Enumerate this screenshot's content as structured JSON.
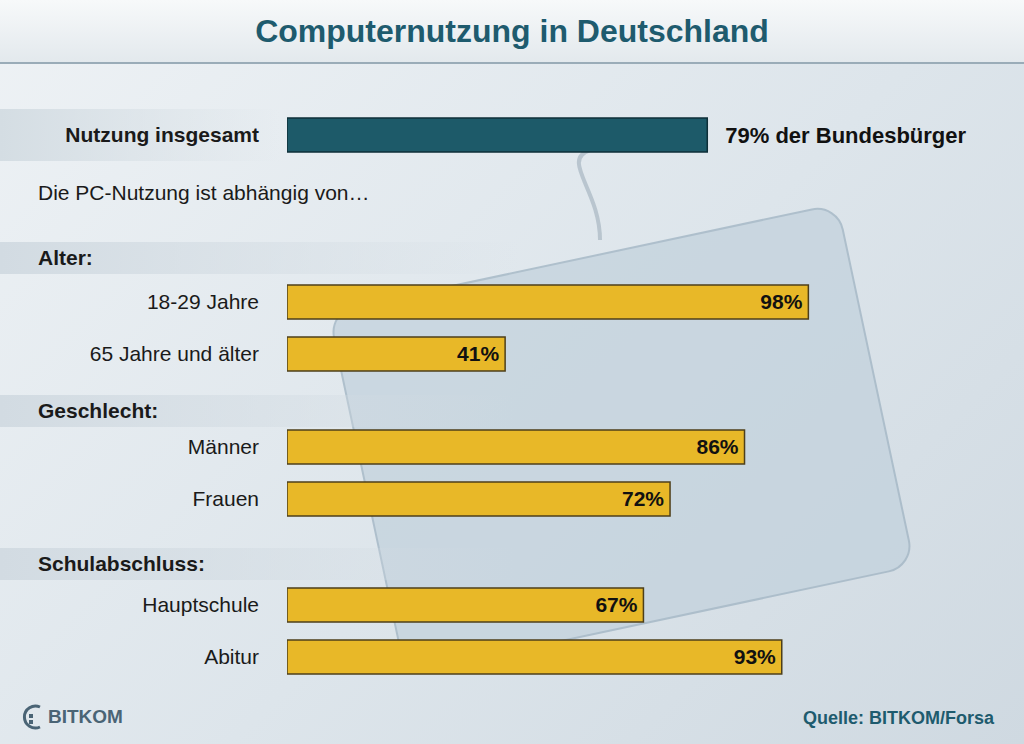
{
  "chart_data": [
    {
      "type": "bar",
      "orientation": "horizontal",
      "title": "Computernutzung in Deutschland",
      "categories": [
        "Nutzung insgesamt"
      ],
      "values": [
        79
      ],
      "value_labels": [
        "79% der Bundesbürger"
      ],
      "color": "#1d5a69",
      "xlim": [
        0,
        100
      ],
      "tick_labels": "y",
      "data_labels": true
    },
    {
      "type": "bar",
      "orientation": "horizontal",
      "subtitle": "Die PC-Nutzung ist abhängig von…",
      "title": "Alter:",
      "categories": [
        "18-29 Jahre",
        "65 Jahre und älter"
      ],
      "values": [
        98,
        41
      ],
      "value_labels": [
        "98%",
        "41%"
      ],
      "color": "#e8b828",
      "xlim": [
        0,
        100
      ],
      "tick_labels": "y",
      "data_labels": true
    },
    {
      "type": "bar",
      "orientation": "horizontal",
      "title": "Geschlecht:",
      "categories": [
        "Männer",
        "Frauen"
      ],
      "values": [
        86,
        72
      ],
      "value_labels": [
        "86%",
        "72%"
      ],
      "color": "#e8b828",
      "xlim": [
        0,
        100
      ],
      "tick_labels": "y",
      "data_labels": true
    },
    {
      "type": "bar",
      "orientation": "horizontal",
      "title": "Schulabschluss:",
      "categories": [
        "Hauptschule",
        "Abitur"
      ],
      "values": [
        67,
        93
      ],
      "value_labels": [
        "67%",
        "93%"
      ],
      "color": "#e8b828",
      "xlim": [
        0,
        100
      ],
      "tick_labels": "y",
      "data_labels": true,
      "annotations": [
        "BITKOM",
        "Quelle: BITKOM/Forsa"
      ]
    }
  ]
}
